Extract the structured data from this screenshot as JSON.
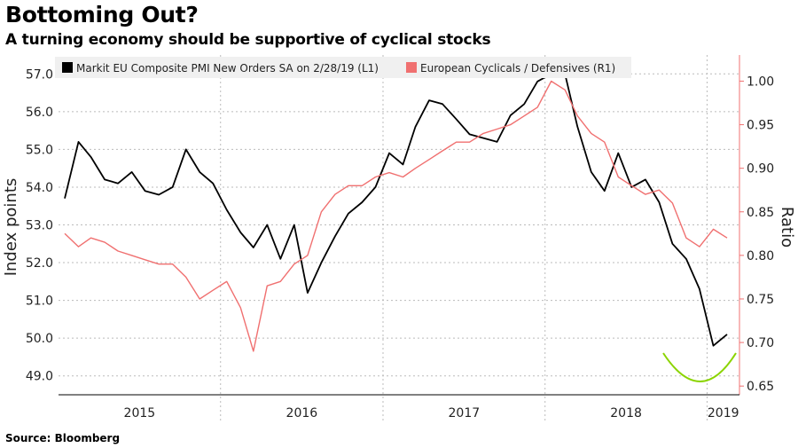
{
  "header": {
    "title": "Bottoming Out?",
    "subtitle": "A turning economy should be supportive of cyclical stocks"
  },
  "footer": {
    "source": "Source: Bloomberg"
  },
  "chart_data": {
    "type": "line",
    "title": "Bottoming Out?",
    "subtitle": "A turning economy should be supportive of cyclical stocks",
    "xlabel": "",
    "x_tick_labels": [
      "2015",
      "2016",
      "2017",
      "2018",
      "2019"
    ],
    "xlim": [
      "2015-01-01",
      "2019-03-15"
    ],
    "left_axis": {
      "label": "Index points",
      "ylim": [
        48.5,
        57.5
      ],
      "ticks": [
        49.0,
        50.0,
        51.0,
        52.0,
        53.0,
        54.0,
        55.0,
        56.0,
        57.0
      ],
      "tick_labels": [
        "49.0",
        "50.0",
        "51.0",
        "52.0",
        "53.0",
        "54.0",
        "55.0",
        "56.0",
        "57.0"
      ]
    },
    "right_axis": {
      "label": "Ratio",
      "ylim": [
        0.64,
        1.03
      ],
      "ticks": [
        0.65,
        0.7,
        0.75,
        0.8,
        0.85,
        0.9,
        0.95,
        1.0
      ],
      "tick_labels": [
        "0.65",
        "0.70",
        "0.75",
        "0.80",
        "0.85",
        "0.90",
        "0.95",
        "1.00"
      ]
    },
    "legend_position": "top",
    "grid": true,
    "series": [
      {
        "name": "Markit EU Composite PMI New Orders SA  on 2/28/19 (L1)",
        "axis": "left",
        "color": "#000000",
        "x": [
          "2015-01",
          "2015-02",
          "2015-03",
          "2015-04",
          "2015-05",
          "2015-06",
          "2015-07",
          "2015-08",
          "2015-09",
          "2015-10",
          "2015-11",
          "2015-12",
          "2016-01",
          "2016-02",
          "2016-03",
          "2016-04",
          "2016-05",
          "2016-06",
          "2016-07",
          "2016-08",
          "2016-09",
          "2016-10",
          "2016-11",
          "2016-12",
          "2017-01",
          "2017-02",
          "2017-03",
          "2017-04",
          "2017-05",
          "2017-06",
          "2017-07",
          "2017-08",
          "2017-09",
          "2017-10",
          "2017-11",
          "2017-12",
          "2018-01",
          "2018-02",
          "2018-03",
          "2018-04",
          "2018-05",
          "2018-06",
          "2018-07",
          "2018-08",
          "2018-09",
          "2018-10",
          "2018-11",
          "2018-12",
          "2019-01",
          "2019-02"
        ],
        "values": [
          53.7,
          55.2,
          54.8,
          54.2,
          54.1,
          54.4,
          53.9,
          53.8,
          54.0,
          55.0,
          54.4,
          54.1,
          53.4,
          52.8,
          52.4,
          53.0,
          52.1,
          53.0,
          51.2,
          52.0,
          52.7,
          53.3,
          53.6,
          54.0,
          54.9,
          54.6,
          55.6,
          56.3,
          56.2,
          55.8,
          55.4,
          55.3,
          55.2,
          55.9,
          56.2,
          56.8,
          57.0,
          57.0,
          55.6,
          54.4,
          53.9,
          54.9,
          54.0,
          54.2,
          53.6,
          52.5,
          52.1,
          51.3,
          49.8,
          50.1
        ]
      },
      {
        "name": "European Cyclicals / Defensives (R1)",
        "axis": "right",
        "color": "#f07070",
        "x": [
          "2015-01",
          "2015-02",
          "2015-03",
          "2015-04",
          "2015-05",
          "2015-06",
          "2015-07",
          "2015-08",
          "2015-09",
          "2015-10",
          "2015-11",
          "2015-12",
          "2016-01",
          "2016-02",
          "2016-03",
          "2016-04",
          "2016-05",
          "2016-06",
          "2016-07",
          "2016-08",
          "2016-09",
          "2016-10",
          "2016-11",
          "2016-12",
          "2017-01",
          "2017-02",
          "2017-03",
          "2017-04",
          "2017-05",
          "2017-06",
          "2017-07",
          "2017-08",
          "2017-09",
          "2017-10",
          "2017-11",
          "2017-12",
          "2018-01",
          "2018-02",
          "2018-03",
          "2018-04",
          "2018-05",
          "2018-06",
          "2018-07",
          "2018-08",
          "2018-09",
          "2018-10",
          "2018-11",
          "2018-12",
          "2019-01",
          "2019-02"
        ],
        "values": [
          0.825,
          0.81,
          0.82,
          0.815,
          0.805,
          0.8,
          0.795,
          0.79,
          0.79,
          0.775,
          0.75,
          0.76,
          0.77,
          0.74,
          0.69,
          0.765,
          0.77,
          0.79,
          0.8,
          0.85,
          0.87,
          0.88,
          0.88,
          0.89,
          0.895,
          0.89,
          0.9,
          0.91,
          0.92,
          0.93,
          0.93,
          0.94,
          0.945,
          0.95,
          0.96,
          0.97,
          1.0,
          0.99,
          0.96,
          0.94,
          0.93,
          0.89,
          0.88,
          0.87,
          0.875,
          0.86,
          0.82,
          0.81,
          0.83,
          0.82
        ]
      }
    ]
  }
}
